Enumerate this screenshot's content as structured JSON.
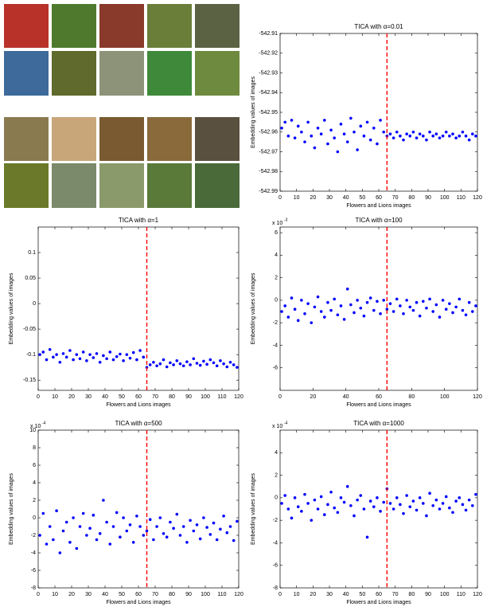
{
  "chart_data": [
    {
      "type": "scatter",
      "title": "TICA with α=0.01",
      "xlabel": "Flowers and Lions images",
      "ylabel": "Embedding values of images",
      "color": "#0000ff",
      "vline": 65,
      "vline_color": "#ff0000",
      "xlim": [
        0,
        120
      ],
      "xticks": [
        0,
        10,
        20,
        30,
        40,
        50,
        60,
        70,
        80,
        90,
        100,
        110,
        120
      ],
      "ylim": [
        -542.99,
        -542.91
      ],
      "yticks": [
        -542.91,
        -542.92,
        -542.93,
        -542.94,
        -542.95,
        -542.96,
        -542.97,
        -542.98,
        -542.99
      ],
      "x": [
        1,
        3,
        5,
        7,
        9,
        11,
        13,
        15,
        17,
        19,
        21,
        23,
        25,
        27,
        29,
        31,
        33,
        35,
        37,
        39,
        41,
        43,
        45,
        47,
        49,
        51,
        53,
        55,
        57,
        59,
        61,
        63,
        65,
        67,
        69,
        71,
        73,
        75,
        77,
        79,
        81,
        83,
        85,
        87,
        89,
        91,
        93,
        95,
        97,
        99,
        101,
        103,
        105,
        107,
        109,
        111,
        113,
        115,
        117,
        119
      ],
      "values": [
        -542.958,
        -542.955,
        -542.962,
        -542.954,
        -542.963,
        -542.957,
        -542.96,
        -542.965,
        -542.955,
        -542.962,
        -542.968,
        -542.958,
        -542.961,
        -542.954,
        -542.966,
        -542.959,
        -542.963,
        -542.97,
        -542.956,
        -542.961,
        -542.965,
        -542.953,
        -542.96,
        -542.969,
        -542.957,
        -542.962,
        -542.955,
        -542.964,
        -542.958,
        -542.966,
        -542.954,
        -542.96,
        -542.962,
        -542.961,
        -542.963,
        -542.96,
        -542.962,
        -542.964,
        -542.961,
        -542.962,
        -542.96,
        -542.963,
        -542.961,
        -542.962,
        -542.964,
        -542.96,
        -542.962,
        -542.961,
        -542.963,
        -542.962,
        -542.96,
        -542.962,
        -542.961,
        -542.963,
        -542.962,
        -542.96,
        -542.962,
        -542.964,
        -542.961,
        -542.962
      ]
    },
    {
      "type": "scatter",
      "title": "TICA with α=1",
      "xlabel": "Flowers and Lions images",
      "ylabel": "Embedding values of images",
      "color": "#0000ff",
      "vline": 65,
      "vline_color": "#ff0000",
      "xlim": [
        0,
        120
      ],
      "xticks": [
        0,
        10,
        20,
        30,
        40,
        50,
        60,
        70,
        80,
        90,
        100,
        110,
        120
      ],
      "ylim": [
        -0.17,
        0.15
      ],
      "yticks": [
        0.1,
        0.05,
        0,
        -0.05,
        -0.1,
        -0.15
      ],
      "x": [
        1,
        3,
        5,
        7,
        9,
        11,
        13,
        15,
        17,
        19,
        21,
        23,
        25,
        27,
        29,
        31,
        33,
        35,
        37,
        39,
        41,
        43,
        45,
        47,
        49,
        51,
        53,
        55,
        57,
        59,
        61,
        63,
        65,
        67,
        69,
        71,
        73,
        75,
        77,
        79,
        81,
        83,
        85,
        87,
        89,
        91,
        93,
        95,
        97,
        99,
        101,
        103,
        105,
        107,
        109,
        111,
        113,
        115,
        117,
        119
      ],
      "values": [
        -0.1,
        -0.095,
        -0.11,
        -0.09,
        -0.105,
        -0.1,
        -0.115,
        -0.098,
        -0.105,
        -0.092,
        -0.11,
        -0.1,
        -0.108,
        -0.095,
        -0.112,
        -0.1,
        -0.106,
        -0.098,
        -0.115,
        -0.102,
        -0.108,
        -0.095,
        -0.11,
        -0.104,
        -0.099,
        -0.112,
        -0.1,
        -0.107,
        -0.096,
        -0.11,
        -0.092,
        -0.105,
        -0.125,
        -0.12,
        -0.115,
        -0.122,
        -0.118,
        -0.11,
        -0.124,
        -0.116,
        -0.12,
        -0.112,
        -0.118,
        -0.122,
        -0.114,
        -0.12,
        -0.108,
        -0.117,
        -0.121,
        -0.113,
        -0.119,
        -0.11,
        -0.116,
        -0.122,
        -0.112,
        -0.118,
        -0.124,
        -0.115,
        -0.12,
        -0.125
      ]
    },
    {
      "type": "scatter",
      "title": "TICA with α=100",
      "xlabel": "Flowers and Lions images",
      "ylabel": "Embedding values of images",
      "color": "#0000ff",
      "vline": 65,
      "vline_color": "#ff0000",
      "y_multiplier": "x 10",
      "y_exponent": "-3",
      "xlim": [
        0,
        120
      ],
      "xticks": [
        0,
        20,
        40,
        60,
        80,
        100,
        120
      ],
      "ylim": [
        -8,
        6.5
      ],
      "yticks": [
        6,
        4,
        2,
        0,
        -2,
        -4,
        -6
      ],
      "x": [
        1,
        3,
        5,
        7,
        9,
        11,
        13,
        15,
        17,
        19,
        21,
        23,
        25,
        27,
        29,
        31,
        33,
        35,
        37,
        39,
        41,
        43,
        45,
        47,
        49,
        51,
        53,
        55,
        57,
        59,
        61,
        63,
        65,
        67,
        69,
        71,
        73,
        75,
        77,
        79,
        81,
        83,
        85,
        87,
        89,
        91,
        93,
        95,
        97,
        99,
        101,
        103,
        105,
        107,
        109,
        111,
        113,
        115,
        117,
        119
      ],
      "values": [
        -1,
        -0.5,
        -1.5,
        0.2,
        -0.8,
        -1.8,
        0,
        -1.2,
        -0.3,
        -2,
        -0.6,
        0.3,
        -1,
        -1.5,
        -0.2,
        -0.9,
        0.1,
        -1.3,
        -0.5,
        -1.7,
        1,
        -0.4,
        -1.1,
        0,
        -0.7,
        -1.4,
        -0.2,
        0.2,
        -0.9,
        -0.1,
        -1.2,
        0,
        -0.8,
        -0.3,
        -1,
        0.1,
        -0.5,
        -1.2,
        0,
        -0.6,
        -0.9,
        -0.2,
        -1.4,
        -0.1,
        -0.7,
        0.1,
        -1,
        -0.4,
        -1.5,
        0,
        -0.8,
        -0.3,
        -1.1,
        -0.6,
        0.1,
        -0.9,
        -1.3,
        -0.2,
        -1.0,
        -0.5
      ]
    },
    {
      "type": "scatter",
      "title": "TICA with α=500",
      "xlabel": "Flowers and Lions images",
      "ylabel": "Embedding values of images",
      "color": "#0000ff",
      "vline": 65,
      "vline_color": "#ff0000",
      "y_multiplier": "x 10",
      "y_exponent": "-4",
      "xlim": [
        0,
        120
      ],
      "xticks": [
        0,
        10,
        20,
        30,
        40,
        50,
        60,
        70,
        80,
        90,
        100,
        110,
        120
      ],
      "ylim": [
        -8,
        10
      ],
      "yticks": [
        10,
        8,
        6,
        4,
        2,
        0,
        -2,
        -4,
        -6,
        -8
      ],
      "x": [
        1,
        3,
        5,
        7,
        9,
        11,
        13,
        15,
        17,
        19,
        21,
        23,
        25,
        27,
        29,
        31,
        33,
        35,
        37,
        39,
        41,
        43,
        45,
        47,
        49,
        51,
        53,
        55,
        57,
        59,
        61,
        63,
        65,
        67,
        69,
        71,
        73,
        75,
        77,
        79,
        81,
        83,
        85,
        87,
        89,
        91,
        93,
        95,
        97,
        99,
        101,
        103,
        105,
        107,
        109,
        111,
        113,
        115,
        117,
        119
      ],
      "values": [
        -2,
        0.5,
        -3,
        -1,
        -2.5,
        0.8,
        -4,
        -1.5,
        -0.5,
        -2.8,
        0,
        -3.5,
        -1,
        0.5,
        -2,
        -1.2,
        0.3,
        -2.5,
        -1.8,
        2,
        -0.5,
        -3,
        -1,
        0.6,
        -2.2,
        0,
        -1.5,
        -0.8,
        -2.8,
        0.2,
        -1,
        -2,
        -1.5,
        -0.2,
        -2.5,
        -1,
        0,
        -1.8,
        -2.2,
        -0.5,
        -1.2,
        0.4,
        -2,
        -1,
        -2.8,
        -0.3,
        -1.5,
        -0.8,
        -2.4,
        0,
        -1.1,
        -1.9,
        -0.6,
        -2.5,
        -1.3,
        0.2,
        -1.7,
        -1,
        -2.6,
        -0.4
      ]
    },
    {
      "type": "scatter",
      "title": "TICA with α=1000",
      "xlabel": "Flowers and Lions images",
      "ylabel": "Embedding values of images",
      "color": "#0000ff",
      "vline": 65,
      "vline_color": "#ff0000",
      "y_multiplier": "x 10",
      "y_exponent": "-4",
      "xlim": [
        0,
        120
      ],
      "xticks": [
        0,
        10,
        20,
        30,
        40,
        50,
        60,
        70,
        80,
        90,
        100,
        110,
        120
      ],
      "ylim": [
        -8,
        6
      ],
      "yticks": [
        4,
        2,
        0,
        -2,
        -4,
        -6,
        -8
      ],
      "x": [
        1,
        3,
        5,
        7,
        9,
        11,
        13,
        15,
        17,
        19,
        21,
        23,
        25,
        27,
        29,
        31,
        33,
        35,
        37,
        39,
        41,
        43,
        45,
        47,
        49,
        51,
        53,
        55,
        57,
        59,
        61,
        63,
        65,
        67,
        69,
        71,
        73,
        75,
        77,
        79,
        81,
        83,
        85,
        87,
        89,
        91,
        93,
        95,
        97,
        99,
        101,
        103,
        105,
        107,
        109,
        111,
        113,
        115,
        117,
        119
      ],
      "values": [
        -0.5,
        0.2,
        -1,
        -1.8,
        0,
        -0.8,
        -1.2,
        0.3,
        -0.5,
        -2,
        -0.2,
        -1,
        0.1,
        -1.5,
        -0.6,
        0.5,
        -0.9,
        -1.3,
        0,
        -0.4,
        1,
        -0.7,
        -1.6,
        -0.2,
        0.2,
        -1,
        -3.5,
        -0.3,
        -0.8,
        0,
        -1.2,
        -0.4,
        0.8,
        -0.5,
        -1,
        0,
        -0.6,
        -1.4,
        0.2,
        -0.8,
        -0.3,
        -1.1,
        0,
        -0.5,
        -1.6,
        0.4,
        -0.7,
        -0.2,
        -1,
        -0.5,
        0.1,
        -0.9,
        -1.3,
        -0.3,
        0,
        -0.6,
        -1.1,
        -0.2,
        -0.7,
        0.3
      ]
    }
  ]
}
